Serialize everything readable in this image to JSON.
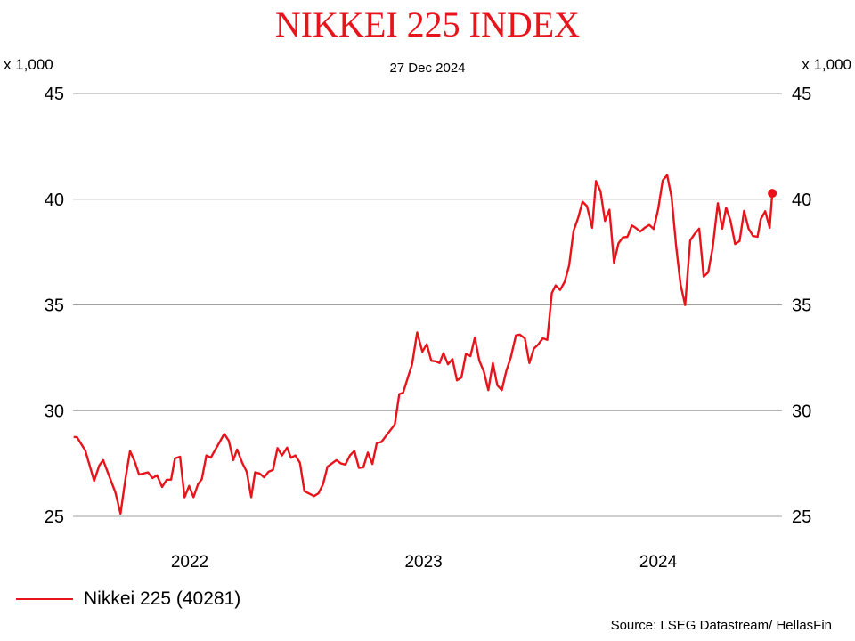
{
  "chart_data": {
    "type": "line",
    "title": "NIKKEI 225 INDEX",
    "subtitle": "27 Dec 2024",
    "ylabel_left": "x 1,000",
    "ylabel_right": "x 1,000",
    "ylim": [
      25,
      45
    ],
    "yticks": [
      "25",
      "30",
      "35",
      "40",
      "45"
    ],
    "xlim": [
      "2022-01-01",
      "2024-12-31"
    ],
    "xticks": [
      "2022",
      "2023",
      "2024"
    ],
    "grid": "horizontal",
    "legend_position": "bottom-left",
    "line_color": "#e8141b",
    "series": [
      {
        "name": "Nikkei 225 (40281)",
        "points": [
          [
            "2022-01-02",
            28.75
          ],
          [
            "2022-01-07",
            28.75
          ],
          [
            "2022-01-20",
            28.12
          ],
          [
            "2022-02-03",
            26.68
          ],
          [
            "2022-02-11",
            27.41
          ],
          [
            "2022-02-17",
            27.66
          ],
          [
            "2022-03-08",
            26.14
          ],
          [
            "2022-03-16",
            25.13
          ],
          [
            "2022-03-24",
            26.82
          ],
          [
            "2022-03-31",
            28.09
          ],
          [
            "2022-04-07",
            27.61
          ],
          [
            "2022-04-14",
            26.98
          ],
          [
            "2022-04-28",
            27.08
          ],
          [
            "2022-05-05",
            26.81
          ],
          [
            "2022-05-12",
            26.94
          ],
          [
            "2022-05-20",
            26.39
          ],
          [
            "2022-05-27",
            26.73
          ],
          [
            "2022-06-03",
            26.74
          ],
          [
            "2022-06-09",
            27.74
          ],
          [
            "2022-06-17",
            27.82
          ],
          [
            "2022-06-24",
            25.9
          ],
          [
            "2022-07-01",
            26.44
          ],
          [
            "2022-07-08",
            25.91
          ],
          [
            "2022-07-15",
            26.52
          ],
          [
            "2022-07-21",
            26.76
          ],
          [
            "2022-07-28",
            27.88
          ],
          [
            "2022-08-04",
            27.78
          ],
          [
            "2022-08-25",
            28.9
          ],
          [
            "2022-09-01",
            28.58
          ],
          [
            "2022-09-08",
            27.66
          ],
          [
            "2022-09-14",
            28.16
          ],
          [
            "2022-09-22",
            27.53
          ],
          [
            "2022-09-29",
            27.11
          ],
          [
            "2022-10-06",
            25.91
          ],
          [
            "2022-10-12",
            27.08
          ],
          [
            "2022-10-19",
            27.03
          ],
          [
            "2022-10-26",
            26.85
          ],
          [
            "2022-11-02",
            27.11
          ],
          [
            "2022-11-09",
            27.2
          ],
          [
            "2022-11-16",
            28.23
          ],
          [
            "2022-11-23",
            27.88
          ],
          [
            "2022-12-01",
            28.25
          ],
          [
            "2022-12-07",
            27.77
          ],
          [
            "2022-12-14",
            27.88
          ],
          [
            "2022-12-21",
            27.53
          ],
          [
            "2022-12-28",
            26.19
          ],
          [
            "2023-01-12",
            25.96
          ],
          [
            "2023-01-19",
            26.09
          ],
          [
            "2023-01-26",
            26.52
          ],
          [
            "2023-02-02",
            27.35
          ],
          [
            "2023-02-16",
            27.66
          ],
          [
            "2023-02-23",
            27.5
          ],
          [
            "2023-03-02",
            27.45
          ],
          [
            "2023-03-09",
            27.88
          ],
          [
            "2023-03-16",
            28.09
          ],
          [
            "2023-03-23",
            27.29
          ],
          [
            "2023-03-30",
            27.32
          ],
          [
            "2023-04-06",
            28.02
          ],
          [
            "2023-04-13",
            27.48
          ],
          [
            "2023-04-20",
            28.48
          ],
          [
            "2023-04-27",
            28.51
          ],
          [
            "2023-05-18",
            29.35
          ],
          [
            "2023-05-25",
            30.78
          ],
          [
            "2023-05-31",
            30.85
          ],
          [
            "2023-06-14",
            32.19
          ],
          [
            "2023-06-22",
            33.7
          ],
          [
            "2023-06-30",
            32.79
          ],
          [
            "2023-07-07",
            33.14
          ],
          [
            "2023-07-14",
            32.36
          ],
          [
            "2023-07-21",
            32.33
          ],
          [
            "2023-07-27",
            32.25
          ],
          [
            "2023-08-02",
            32.72
          ],
          [
            "2023-08-09",
            32.19
          ],
          [
            "2023-08-16",
            32.44
          ],
          [
            "2023-08-23",
            31.43
          ],
          [
            "2023-08-30",
            31.57
          ],
          [
            "2023-09-06",
            32.68
          ],
          [
            "2023-09-13",
            32.58
          ],
          [
            "2023-09-20",
            33.46
          ],
          [
            "2023-09-27",
            32.36
          ],
          [
            "2023-10-04",
            31.85
          ],
          [
            "2023-10-11",
            30.97
          ],
          [
            "2023-10-18",
            32.25
          ],
          [
            "2023-10-25",
            31.2
          ],
          [
            "2023-11-01",
            30.97
          ],
          [
            "2023-11-08",
            31.88
          ],
          [
            "2023-11-15",
            32.51
          ],
          [
            "2023-11-23",
            33.56
          ],
          [
            "2023-11-29",
            33.6
          ],
          [
            "2023-12-07",
            33.42
          ],
          [
            "2023-12-14",
            32.25
          ],
          [
            "2023-12-21",
            32.93
          ],
          [
            "2023-12-28",
            33.14
          ],
          [
            "2024-01-04",
            33.42
          ],
          [
            "2024-01-11",
            33.35
          ],
          [
            "2024-01-18",
            35.56
          ],
          [
            "2024-01-24",
            35.92
          ],
          [
            "2024-01-31",
            35.71
          ],
          [
            "2024-02-07",
            36.09
          ],
          [
            "2024-02-14",
            36.86
          ],
          [
            "2024-02-21",
            38.5
          ],
          [
            "2024-02-28",
            39.11
          ],
          [
            "2024-03-06",
            39.88
          ],
          [
            "2024-03-13",
            39.67
          ],
          [
            "2024-03-21",
            38.65
          ],
          [
            "2024-03-27",
            40.86
          ],
          [
            "2024-04-03",
            40.37
          ],
          [
            "2024-04-10",
            38.97
          ],
          [
            "2024-04-17",
            39.5
          ],
          [
            "2024-04-24",
            37.0
          ],
          [
            "2024-05-01",
            37.91
          ],
          [
            "2024-05-08",
            38.19
          ],
          [
            "2024-05-15",
            38.22
          ],
          [
            "2024-05-22",
            38.76
          ],
          [
            "2024-05-28",
            38.64
          ],
          [
            "2024-06-04",
            38.47
          ],
          [
            "2024-06-11",
            38.65
          ],
          [
            "2024-06-18",
            38.78
          ],
          [
            "2024-06-25",
            38.59
          ],
          [
            "2024-07-02",
            39.53
          ],
          [
            "2024-07-09",
            40.89
          ],
          [
            "2024-07-16",
            41.14
          ],
          [
            "2024-07-23",
            40.09
          ],
          [
            "2024-07-30",
            37.77
          ],
          [
            "2024-08-06",
            35.95
          ],
          [
            "2024-08-13",
            34.99
          ],
          [
            "2024-08-21",
            38.05
          ],
          [
            "2024-08-28",
            38.36
          ],
          [
            "2024-09-04",
            38.61
          ],
          [
            "2024-09-11",
            36.34
          ],
          [
            "2024-09-18",
            36.54
          ],
          [
            "2024-09-25",
            37.7
          ],
          [
            "2024-10-03",
            39.81
          ],
          [
            "2024-10-10",
            38.61
          ],
          [
            "2024-10-16",
            39.6
          ],
          [
            "2024-10-23",
            38.97
          ],
          [
            "2024-10-30",
            37.88
          ],
          [
            "2024-11-06",
            38.02
          ],
          [
            "2024-11-13",
            39.45
          ],
          [
            "2024-11-20",
            38.61
          ],
          [
            "2024-11-27",
            38.26
          ],
          [
            "2024-12-04",
            38.22
          ],
          [
            "2024-12-09",
            39.06
          ],
          [
            "2024-12-16",
            39.43
          ],
          [
            "2024-12-23",
            38.65
          ],
          [
            "2024-12-27",
            40.281
          ]
        ]
      }
    ],
    "source": "Source: LSEG Datastream/ HellasFin"
  }
}
